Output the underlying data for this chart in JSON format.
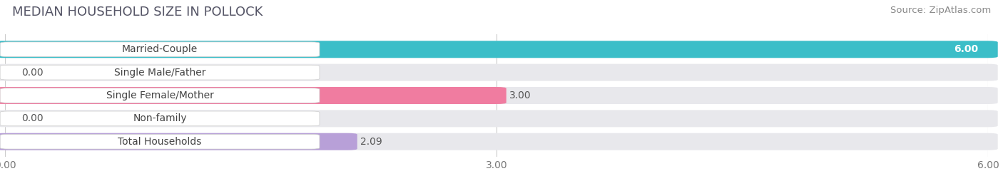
{
  "title": "MEDIAN HOUSEHOLD SIZE IN POLLOCK",
  "source": "Source: ZipAtlas.com",
  "categories": [
    "Married-Couple",
    "Single Male/Father",
    "Single Female/Mother",
    "Non-family",
    "Total Households"
  ],
  "values": [
    6.0,
    0.0,
    3.0,
    0.0,
    2.09
  ],
  "bar_colors": [
    "#3bbec8",
    "#9ab4e0",
    "#f07ca0",
    "#f5c98a",
    "#b8a0d8"
  ],
  "bar_bg_color": "#e8e8ec",
  "value_labels": [
    "6.00",
    "0.00",
    "3.00",
    "0.00",
    "2.09"
  ],
  "xlim": [
    0,
    6.0
  ],
  "xticks": [
    0.0,
    3.0,
    6.0
  ],
  "xtick_labels": [
    "0.00",
    "3.00",
    "6.00"
  ],
  "background_color": "#ffffff",
  "title_fontsize": 13,
  "source_fontsize": 9.5,
  "label_fontsize": 10,
  "value_fontsize": 10
}
